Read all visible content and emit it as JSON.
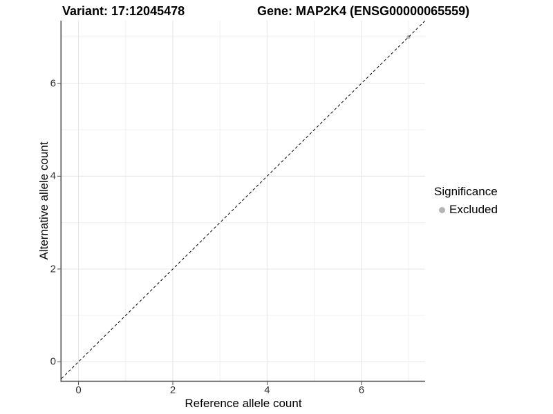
{
  "header": {
    "variant_title": "Variant: 17:12045478",
    "gene_title": "Gene: MAP2K4 (ENSG00000065559)"
  },
  "chart_data": {
    "type": "scatter",
    "title": "Variant: 17:12045478    Gene: MAP2K4 (ENSG00000065559)",
    "xlabel": "Reference allele count",
    "ylabel": "Alternative allele count",
    "xlim": [
      -0.36,
      7.35
    ],
    "ylim": [
      -0.41,
      7.35
    ],
    "x_major_ticks": [
      0,
      2,
      4,
      6
    ],
    "y_major_ticks": [
      0,
      2,
      4,
      6
    ],
    "x_minor_gridlines": [
      1,
      3,
      5,
      7
    ],
    "y_minor_gridlines": [
      1,
      3,
      5,
      7
    ],
    "grid": true,
    "point_radius": 2.8,
    "series": [
      {
        "name": "Excluded",
        "color": "#b5b5b5",
        "points": [
          [
            7,
            7
          ]
        ]
      }
    ],
    "identity_line": {
      "style": "dashed",
      "equation": "y = x",
      "color": "#000000"
    },
    "legend": {
      "title": "Significance",
      "position": "right",
      "items": [
        {
          "label": "Excluded",
          "color": "#b5b5b5"
        }
      ]
    },
    "colors": {
      "background": "#ffffff",
      "panel_background": "#ffffff",
      "grid_major": "#e5e5e5",
      "grid_minor": "#f0f0f0",
      "axis_line": "#4a4a4a",
      "tick_label": "#333333",
      "title_text": "#000000"
    }
  }
}
